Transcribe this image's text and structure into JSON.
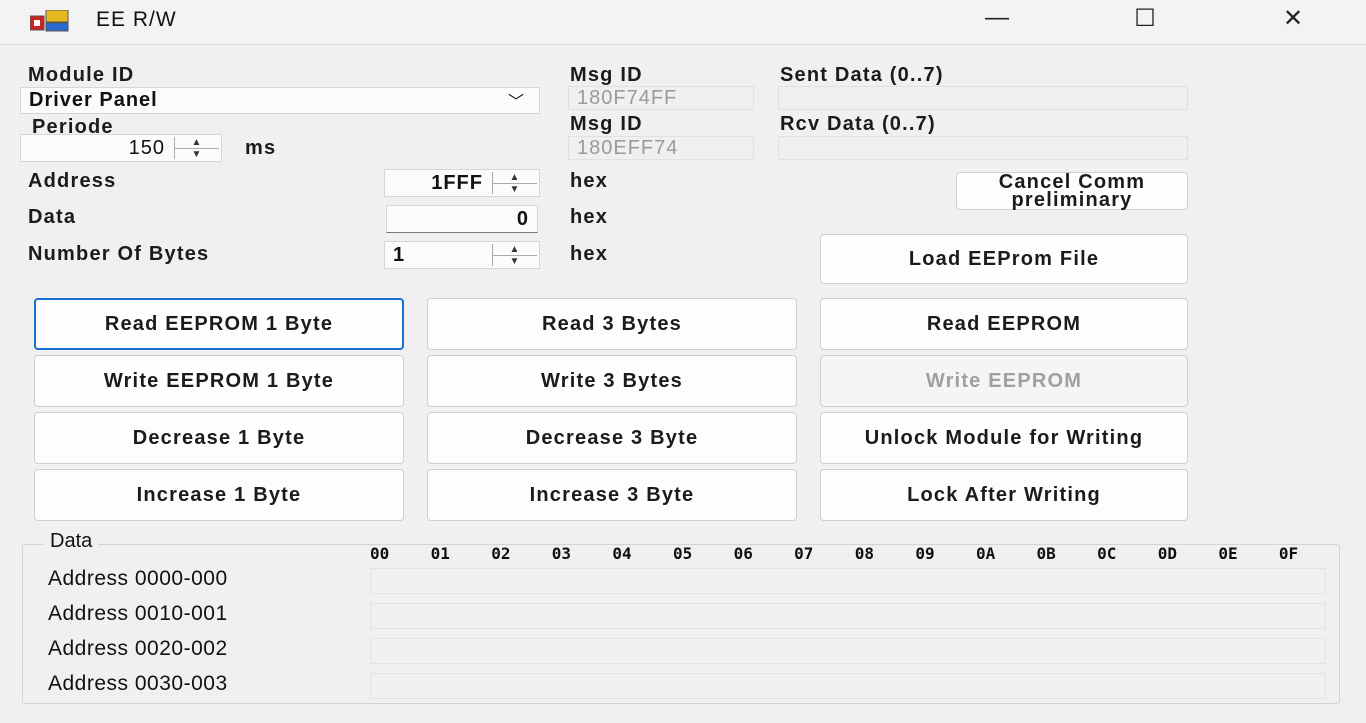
{
  "window": {
    "title": "EE R/W",
    "minimize": "—",
    "maximize": "☐",
    "close": "✕"
  },
  "module": {
    "label": "Module ID",
    "value": "Driver Panel"
  },
  "periode": {
    "label": "Periode",
    "value": "150",
    "unit": "ms"
  },
  "msg_tx": {
    "label": "Msg ID",
    "value": "180F74FF"
  },
  "msg_rx": {
    "label": "Msg ID",
    "value": "180EFF74"
  },
  "sent": {
    "label": "Sent Data (0..7)",
    "value": ""
  },
  "rcv": {
    "label": "Rcv Data (0..7)",
    "value": ""
  },
  "address": {
    "label": "Address",
    "value": "1FFF",
    "unit": "hex"
  },
  "data": {
    "label": "Data",
    "value": "0",
    "unit": "hex"
  },
  "nbytes": {
    "label": "Number Of Bytes",
    "value": "1",
    "unit": "hex"
  },
  "buttons": {
    "cancel_line1": "Cancel Comm",
    "cancel_line2": "preliminary",
    "load": "Load EEProm File",
    "grid": [
      [
        "Read EEPROM 1 Byte",
        "Read 3 Bytes",
        "Read EEPROM"
      ],
      [
        "Write EEPROM 1 Byte",
        "Write 3 Bytes",
        "Write EEPROM"
      ],
      [
        "Decrease 1 Byte",
        "Decrease 3 Byte",
        "Unlock Module for Writing"
      ],
      [
        "Increase 1 Byte",
        "Increase 3 Byte",
        "Lock After Writing"
      ]
    ]
  },
  "datagroup": {
    "label": "Data",
    "columns": [
      "00",
      "01",
      "02",
      "03",
      "04",
      "05",
      "06",
      "07",
      "08",
      "09",
      "0A",
      "0B",
      "0C",
      "0D",
      "0E",
      "0F"
    ],
    "rows": [
      "Address 0000-000",
      "Address 0010-001",
      "Address 0020-002",
      "Address 0030-003"
    ]
  },
  "colors": {
    "focus": "#1a6fd4",
    "background": "#f0f0f0"
  }
}
